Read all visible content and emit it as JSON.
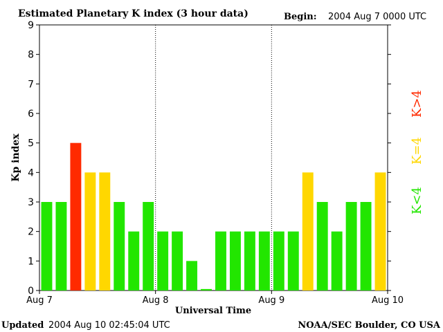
{
  "header": {
    "title": "Estimated Planetary K index (3 hour data)",
    "begin_label": "Begin:",
    "begin_value": "2004 Aug 7 0000 UTC"
  },
  "footer": {
    "updated_label": "Updated",
    "updated_value": "2004 Aug 10 02:45:04 UTC",
    "source": "NOAA/SEC Boulder, CO USA"
  },
  "legend": [
    {
      "label": "K>4",
      "color": "#ff2a00"
    },
    {
      "label": "K=4",
      "color": "#ffd700"
    },
    {
      "label": "K<4",
      "color": "#22e600"
    }
  ],
  "chart_data": {
    "type": "bar",
    "title": "Estimated Planetary K index (3 hour data)",
    "xlabel": "Universal Time",
    "ylabel": "Kp index",
    "ylim": [
      0,
      9
    ],
    "yticks": [
      "0",
      "1",
      "2",
      "3",
      "4",
      "5",
      "6",
      "7",
      "8",
      "9"
    ],
    "xticks": [
      "Aug 7",
      "Aug 8",
      "Aug 9",
      "Aug 10"
    ],
    "day_separators": "dotted",
    "values": [
      3,
      3,
      5,
      4,
      4,
      3,
      2,
      3,
      2,
      2,
      1,
      0.05,
      2,
      2,
      2,
      2,
      2,
      2,
      4,
      3,
      2,
      3,
      3,
      4
    ],
    "colors": {
      "low": "#22e600",
      "equal": "#ffd700",
      "high": "#ff2a00"
    }
  }
}
